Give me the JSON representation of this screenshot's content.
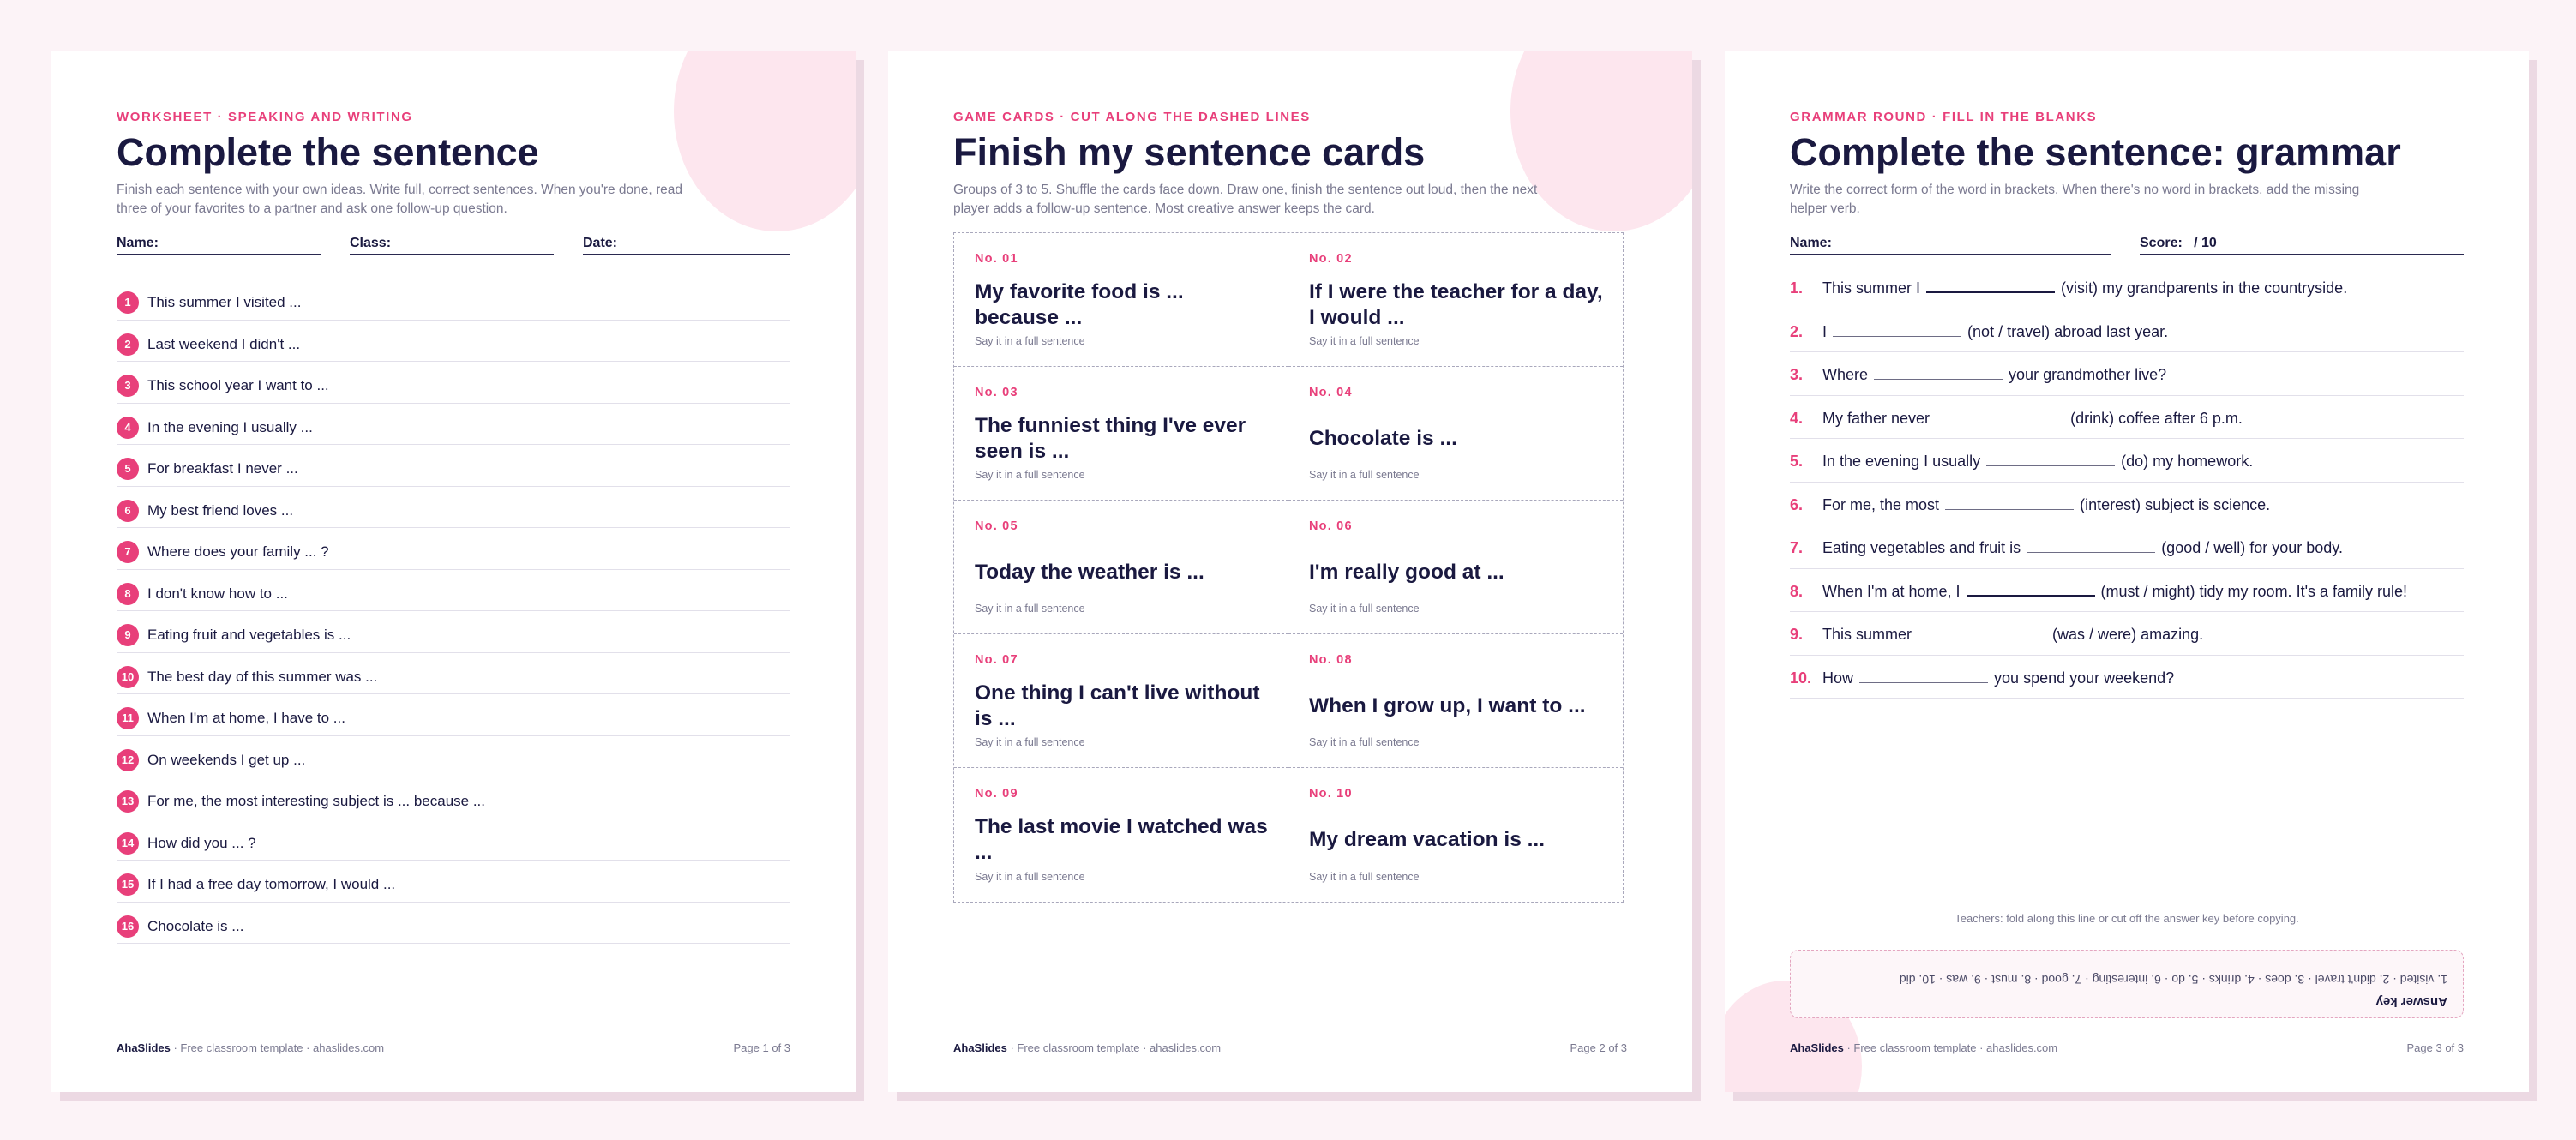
{
  "pages": [
    {
      "eyebrow": "WORKSHEET · SPEAKING AND WRITING",
      "title": "Complete the sentence",
      "intro": "Finish each sentence with your own ideas. Write full, correct sentences. When you're done, read three of your favorites to a partner and ask one follow-up question.",
      "fields": [
        "Name:",
        "Class:",
        "Date:"
      ],
      "items": [
        "This summer I visited ...",
        "Last weekend I didn't ...",
        "This school year I want to ...",
        "In the evening I usually ...",
        "For breakfast I never ...",
        "My best friend loves ...",
        "Where does your family ... ?",
        "I don't know how to ...",
        "Eating fruit and vegetables is ...",
        "The best day of this summer was ...",
        "When I'm at home, I have to ...",
        "On weekends I get up ...",
        "For me, the most interesting subject is ... because ...",
        "How did you ... ?",
        "If I had a free day tomorrow, I would ...",
        "Chocolate is ..."
      ],
      "footer": {
        "brand": "AhaSlides",
        "text": " · Free classroom template · ahaslides.com",
        "page": "Page 1 of 3"
      }
    },
    {
      "eyebrow": "GAME CARDS · CUT ALONG THE DASHED LINES",
      "title": "Finish my sentence cards",
      "intro": "Groups of 3 to 5. Shuffle the cards face down. Draw one, finish the sentence out loud, then the next player adds a follow-up sentence. Most creative answer keeps the card.",
      "hint": "Say it in a full sentence",
      "cards": [
        {
          "no": "No. 01",
          "q": "My favorite food is ... because ..."
        },
        {
          "no": "No. 02",
          "q": "If I were the teacher for a day, I would ..."
        },
        {
          "no": "No. 03",
          "q": "The funniest thing I've ever seen is ..."
        },
        {
          "no": "No. 04",
          "q": "Chocolate is ..."
        },
        {
          "no": "No. 05",
          "q": "Today the weather is ..."
        },
        {
          "no": "No. 06",
          "q": "I'm really good at ..."
        },
        {
          "no": "No. 07",
          "q": "One thing I can't live without is ..."
        },
        {
          "no": "No. 08",
          "q": "When I grow up, I want to ..."
        },
        {
          "no": "No. 09",
          "q": "The last movie I watched was ..."
        },
        {
          "no": "No. 10",
          "q": "My dream vacation is ..."
        }
      ],
      "footer": {
        "brand": "AhaSlides",
        "text": " · Free classroom template · ahaslides.com",
        "page": "Page 2 of 3"
      }
    },
    {
      "eyebrow": "GRAMMAR ROUND · FILL IN THE BLANKS",
      "title": "Complete the sentence: grammar",
      "intro": "Write the correct form of the word in brackets. When there's no word in brackets, add the missing helper verb.",
      "fields": [
        "Name:",
        "Score:   / 10"
      ],
      "items": [
        {
          "n": "1.",
          "pre": "This summer I",
          "post": "(visit) my grandparents in the countryside."
        },
        {
          "n": "2.",
          "pre": "I",
          "post": "(not / travel) abroad last year."
        },
        {
          "n": "3.",
          "pre": "Where",
          "post": "your grandmother live?"
        },
        {
          "n": "4.",
          "pre": "My father never",
          "post": "(drink) coffee after 6 p.m."
        },
        {
          "n": "5.",
          "pre": "In the evening I usually",
          "post": "(do) my homework."
        },
        {
          "n": "6.",
          "pre": "For me, the most",
          "post": "(interest) subject is science."
        },
        {
          "n": "7.",
          "pre": "Eating vegetables and fruit is",
          "post": "(good / well) for your body."
        },
        {
          "n": "8.",
          "pre": "When I'm at home, I",
          "post": "(must / might) tidy my room. It's a family rule!"
        },
        {
          "n": "9.",
          "pre": "This summer",
          "post": "(was / were) amazing."
        },
        {
          "n": "10.",
          "pre": "How",
          "post": "you spend your weekend?"
        }
      ],
      "fold_note": "Teachers: fold along this line or cut off the answer key before copying.",
      "answer_key": {
        "title": "Answer key",
        "text": "1. visited · 2. didn't travel · 3. does · 4. drinks · 5. do · 6. interesting · 7. good · 8. must · 9. was · 10. did"
      },
      "footer": {
        "brand": "AhaSlides",
        "text": " · Free classroom template · ahaslides.com",
        "page": "Page 3 of 3"
      }
    }
  ]
}
